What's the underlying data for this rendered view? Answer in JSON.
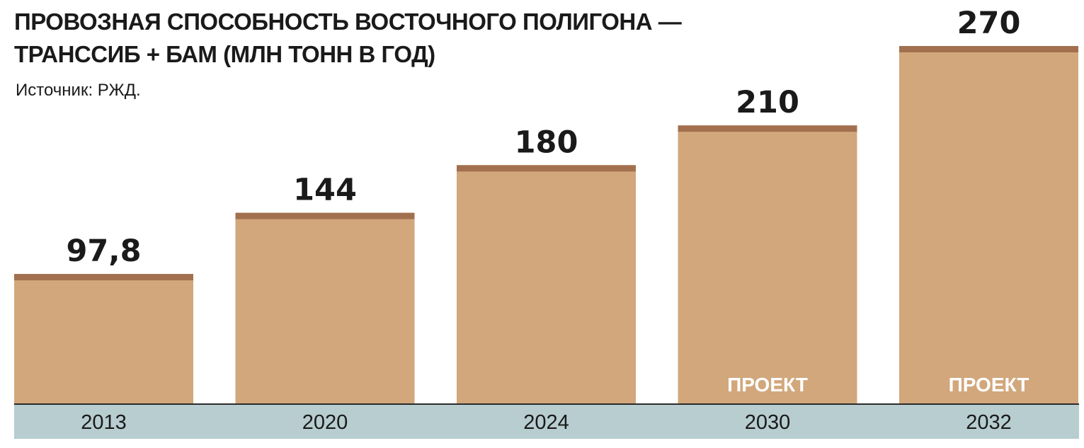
{
  "title_lines": [
    "ПРОВОЗНАЯ СПОСОБНОСТЬ ВОСТОЧНОГО ПОЛИГОНА —",
    "ТРАНССИБ + БАМ (МЛН ТОНН В ГОД)"
  ],
  "source": "Источник: РЖД.",
  "colors": {
    "bar": "#d2a77c",
    "bar_cap": "#a2704f",
    "axis_band": "#b7cdd0",
    "axis_line": "#2b2b2b",
    "text": "#1a1a1a"
  },
  "chart_data": {
    "type": "bar",
    "title": "ПРОВОЗНАЯ СПОСОБНОСТЬ ВОСТОЧНОГО ПОЛИГОНА — ТРАНССИБ + БАМ (МЛН ТОНН В ГОД)",
    "categories": [
      "2013",
      "2020",
      "2024",
      "2030",
      "2032"
    ],
    "values": [
      97.8,
      144,
      180,
      210,
      270
    ],
    "value_labels": [
      "97,8",
      "144",
      "180",
      "210",
      "270"
    ],
    "bar_notes": [
      "",
      "",
      "",
      "ПРОЕКТ",
      "ПРОЕКТ"
    ],
    "xlabel": "",
    "ylabel": "",
    "ylim": [
      0,
      270
    ],
    "grid": false,
    "legend": "none"
  }
}
